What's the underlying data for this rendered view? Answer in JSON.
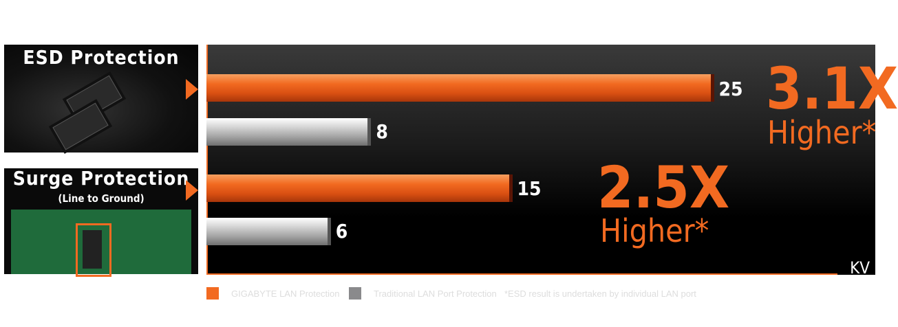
{
  "panels": [
    {
      "title": "ESD Protection",
      "subtitle": ""
    },
    {
      "title": "Surge Protection",
      "subtitle": "(Line to Ground)"
    }
  ],
  "colors": {
    "gigabyte": "#f26a21",
    "traditional": "#8a8a8c"
  },
  "legend": {
    "gigabyte": "GIGABYTE LAN Protection",
    "traditional": "Traditional LAN Port Protection",
    "note": "*ESD result is undertaken by individual LAN port"
  },
  "chart_data": {
    "type": "bar",
    "orientation": "horizontal",
    "categories": [
      "ESD Protection",
      "Surge Protection (Line to Ground)"
    ],
    "series": [
      {
        "name": "GIGABYTE LAN Protection",
        "values": [
          25,
          15
        ]
      },
      {
        "name": "Traditional LAN Port Protection",
        "values": [
          8,
          6
        ]
      }
    ],
    "unit": "KV",
    "annotations": [
      {
        "big": "3.1X",
        "small": "Higher*"
      },
      {
        "big": "2.5X",
        "small": "Higher*"
      }
    ],
    "value_labels": [
      "25",
      "8",
      "15",
      "6"
    ]
  }
}
